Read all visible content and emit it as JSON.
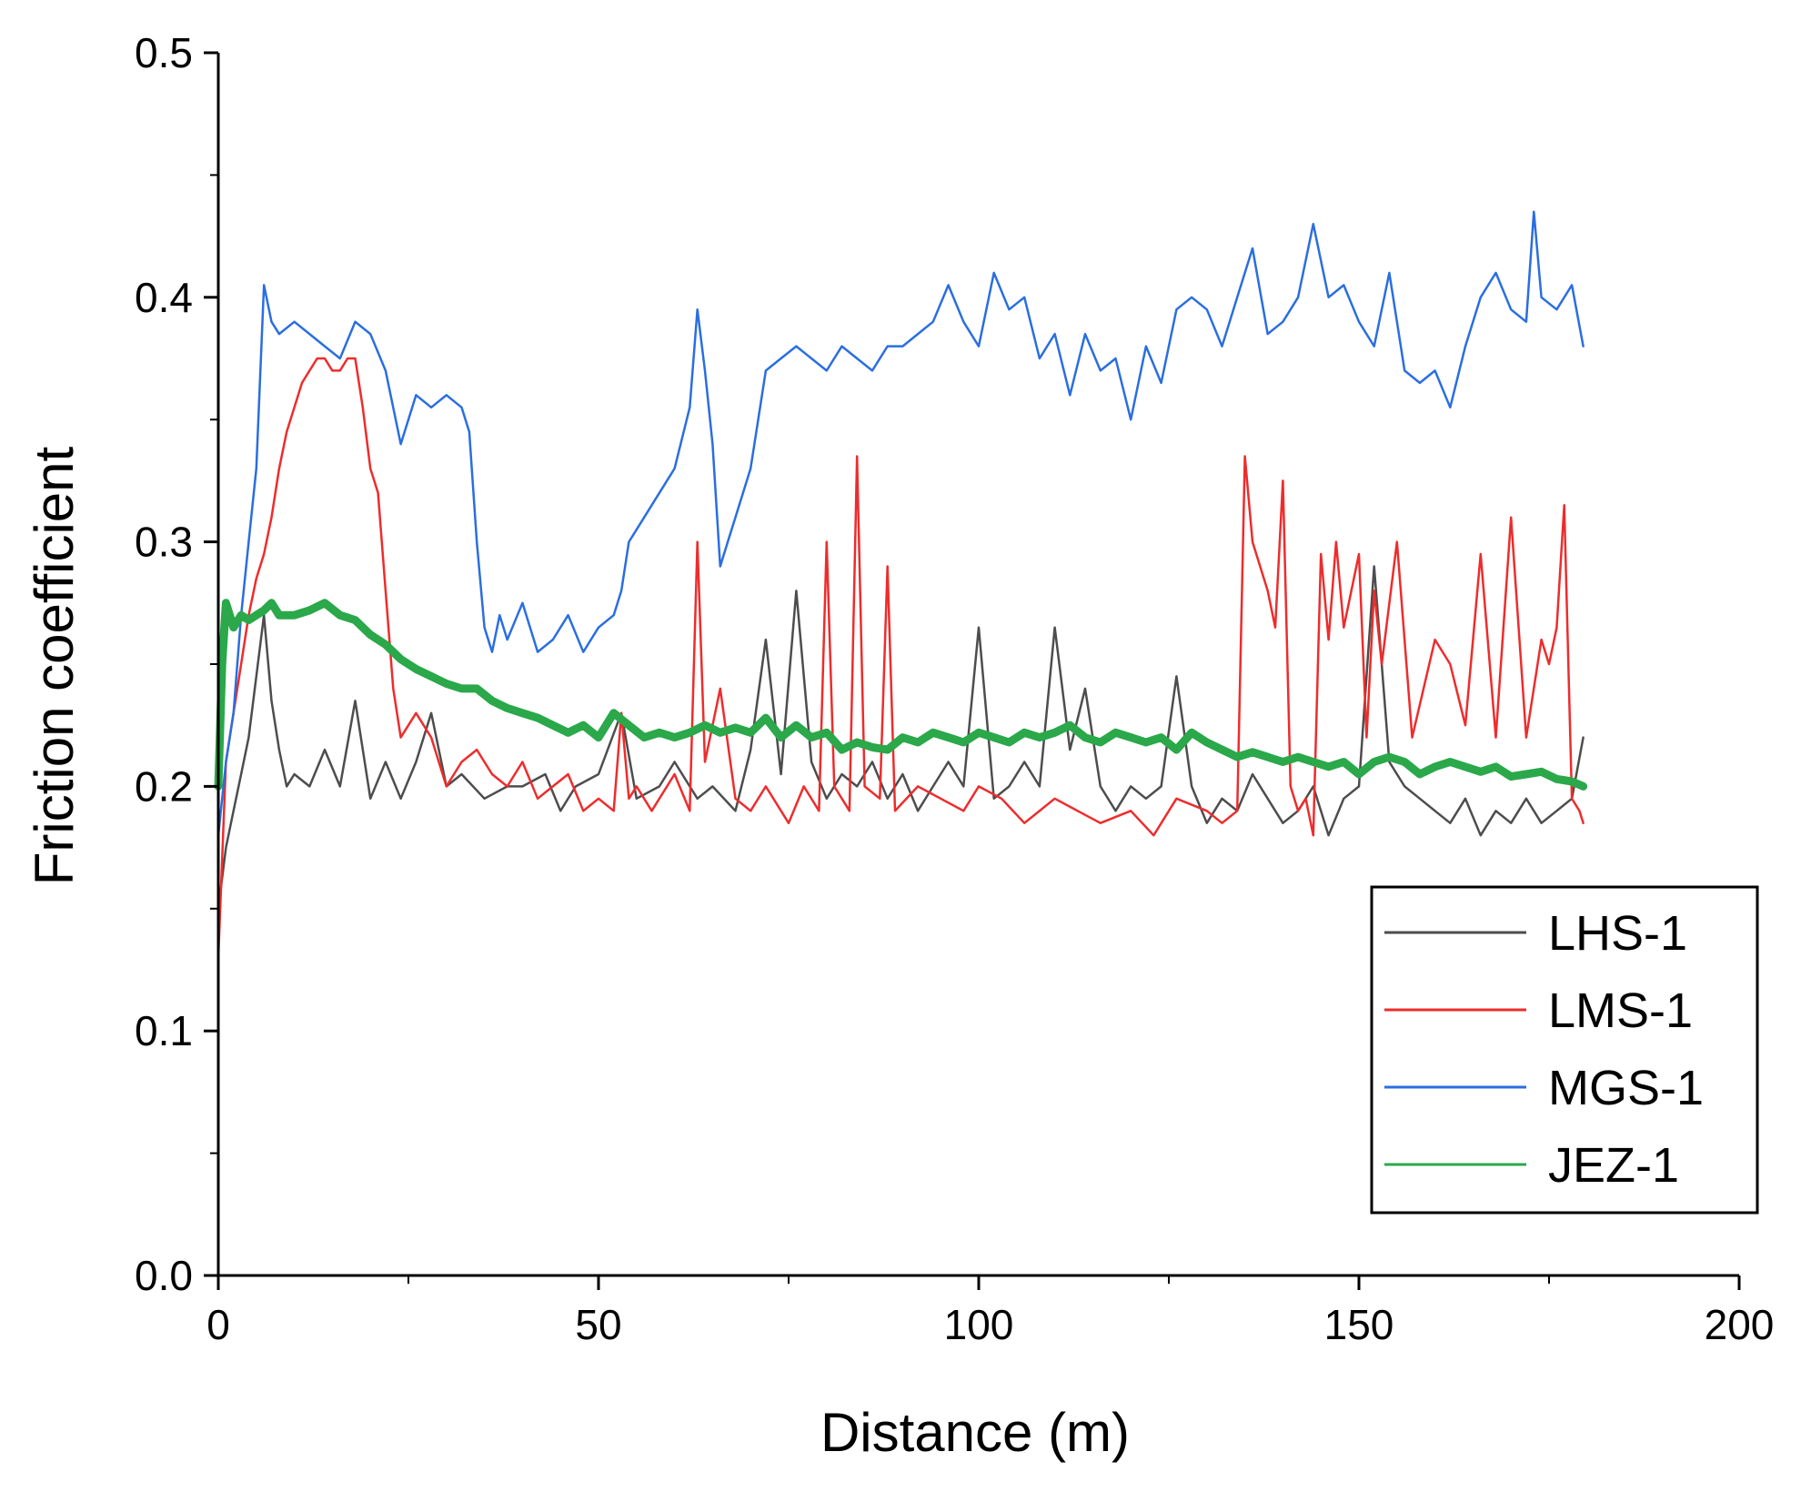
{
  "chart_data": {
    "type": "line",
    "title": "",
    "xlabel": "Distance (m)",
    "ylabel": "Friction coefficient",
    "xlim": [
      0,
      200
    ],
    "ylim": [
      0.0,
      0.5
    ],
    "x_ticks": [
      0,
      50,
      100,
      150,
      200
    ],
    "x_tick_labels": [
      "0",
      "50",
      "100",
      "150",
      "200"
    ],
    "y_ticks": [
      0.0,
      0.1,
      0.2,
      0.3,
      0.4,
      0.5
    ],
    "y_tick_labels": [
      "0.0",
      "0.1",
      "0.2",
      "0.3",
      "0.4",
      "0.5"
    ],
    "grid": false,
    "legend_position": "bottom-right",
    "series": [
      {
        "name": "LHS-1",
        "color": "#4d4d4d",
        "x": [
          0,
          1,
          2,
          3,
          4,
          5,
          6,
          7,
          8,
          9,
          10,
          12,
          14,
          16,
          18,
          20,
          22,
          24,
          26,
          28,
          30,
          32,
          35,
          38,
          40,
          43,
          45,
          47,
          50,
          53,
          55,
          58,
          60,
          63,
          65,
          68,
          70,
          72,
          74,
          76,
          78,
          80,
          82,
          84,
          86,
          88,
          90,
          92,
          94,
          96,
          98,
          100,
          102,
          104,
          106,
          108,
          110,
          112,
          114,
          116,
          118,
          120,
          122,
          124,
          126,
          128,
          130,
          132,
          134,
          136,
          138,
          140,
          142,
          144,
          146,
          148,
          150,
          152,
          154,
          156,
          158,
          160,
          162,
          164,
          166,
          168,
          170,
          172,
          174,
          176,
          178,
          179.5
        ],
        "values": [
          0.15,
          0.175,
          0.19,
          0.205,
          0.22,
          0.245,
          0.27,
          0.235,
          0.215,
          0.2,
          0.205,
          0.2,
          0.215,
          0.2,
          0.235,
          0.195,
          0.21,
          0.195,
          0.21,
          0.23,
          0.2,
          0.205,
          0.195,
          0.2,
          0.2,
          0.205,
          0.19,
          0.2,
          0.205,
          0.23,
          0.195,
          0.2,
          0.21,
          0.195,
          0.2,
          0.19,
          0.215,
          0.26,
          0.205,
          0.28,
          0.21,
          0.195,
          0.205,
          0.2,
          0.21,
          0.195,
          0.205,
          0.19,
          0.2,
          0.21,
          0.2,
          0.265,
          0.195,
          0.2,
          0.21,
          0.2,
          0.265,
          0.215,
          0.24,
          0.2,
          0.19,
          0.2,
          0.195,
          0.2,
          0.245,
          0.2,
          0.185,
          0.195,
          0.19,
          0.205,
          0.195,
          0.185,
          0.19,
          0.2,
          0.18,
          0.195,
          0.2,
          0.29,
          0.21,
          0.2,
          0.195,
          0.19,
          0.185,
          0.195,
          0.18,
          0.19,
          0.185,
          0.195,
          0.185,
          0.19,
          0.195,
          0.22
        ]
      },
      {
        "name": "LMS-1",
        "color": "#ee2c2c",
        "x": [
          0,
          1,
          2,
          3,
          4,
          5,
          6,
          7,
          8,
          9,
          10,
          11,
          12,
          13,
          14,
          15,
          16,
          17,
          18,
          19,
          20,
          21,
          22,
          23,
          24,
          26,
          28,
          30,
          32,
          34,
          36,
          38,
          40,
          42,
          44,
          46,
          48,
          50,
          52,
          53,
          54,
          55,
          57,
          60,
          62,
          63,
          64,
          66,
          68,
          70,
          72,
          75,
          77,
          79,
          80,
          81,
          83,
          84,
          85,
          87,
          88,
          89,
          92,
          95,
          98,
          100,
          103,
          106,
          110,
          113,
          116,
          120,
          123,
          126,
          130,
          132,
          134,
          135,
          136,
          138,
          139,
          140,
          141,
          142,
          143,
          144,
          145,
          146,
          147,
          148,
          150,
          151,
          152,
          153,
          155,
          157,
          160,
          162,
          164,
          166,
          168,
          170,
          172,
          174,
          175,
          176,
          177,
          178,
          179,
          179.5
        ],
        "values": [
          0.13,
          0.21,
          0.23,
          0.25,
          0.27,
          0.285,
          0.295,
          0.31,
          0.33,
          0.345,
          0.355,
          0.365,
          0.37,
          0.375,
          0.375,
          0.37,
          0.37,
          0.375,
          0.375,
          0.355,
          0.33,
          0.32,
          0.28,
          0.24,
          0.22,
          0.23,
          0.22,
          0.2,
          0.21,
          0.215,
          0.205,
          0.2,
          0.21,
          0.195,
          0.2,
          0.205,
          0.19,
          0.195,
          0.19,
          0.23,
          0.195,
          0.2,
          0.19,
          0.205,
          0.19,
          0.3,
          0.21,
          0.24,
          0.195,
          0.19,
          0.2,
          0.185,
          0.2,
          0.19,
          0.3,
          0.2,
          0.19,
          0.335,
          0.2,
          0.195,
          0.29,
          0.19,
          0.2,
          0.195,
          0.19,
          0.2,
          0.195,
          0.185,
          0.195,
          0.19,
          0.185,
          0.19,
          0.18,
          0.195,
          0.19,
          0.185,
          0.19,
          0.335,
          0.3,
          0.28,
          0.265,
          0.325,
          0.2,
          0.19,
          0.195,
          0.18,
          0.295,
          0.26,
          0.3,
          0.265,
          0.295,
          0.22,
          0.28,
          0.25,
          0.3,
          0.22,
          0.26,
          0.25,
          0.225,
          0.295,
          0.22,
          0.31,
          0.22,
          0.26,
          0.25,
          0.265,
          0.315,
          0.195,
          0.19,
          0.185
        ]
      },
      {
        "name": "MGS-1",
        "color": "#2a6ee0",
        "x": [
          0,
          1,
          2,
          3,
          4,
          5,
          6,
          7,
          8,
          10,
          12,
          14,
          16,
          18,
          20,
          22,
          24,
          25,
          26,
          28,
          30,
          32,
          33,
          34,
          35,
          36,
          37,
          38,
          40,
          42,
          44,
          46,
          48,
          50,
          52,
          53,
          54,
          56,
          58,
          60,
          62,
          63,
          64,
          65,
          66,
          67,
          68,
          70,
          72,
          74,
          76,
          78,
          80,
          82,
          84,
          86,
          88,
          90,
          92,
          94,
          96,
          98,
          100,
          102,
          104,
          106,
          108,
          110,
          112,
          114,
          116,
          118,
          120,
          122,
          124,
          126,
          128,
          130,
          132,
          134,
          136,
          138,
          140,
          142,
          144,
          146,
          148,
          150,
          152,
          154,
          156,
          158,
          160,
          162,
          164,
          166,
          168,
          170,
          172,
          173,
          174,
          176,
          178,
          179.5
        ],
        "values": [
          0.18,
          0.21,
          0.23,
          0.27,
          0.3,
          0.33,
          0.405,
          0.39,
          0.385,
          0.39,
          0.385,
          0.38,
          0.375,
          0.39,
          0.385,
          0.37,
          0.34,
          0.35,
          0.36,
          0.355,
          0.36,
          0.355,
          0.345,
          0.3,
          0.265,
          0.255,
          0.27,
          0.26,
          0.275,
          0.255,
          0.26,
          0.27,
          0.255,
          0.265,
          0.27,
          0.28,
          0.3,
          0.31,
          0.32,
          0.33,
          0.355,
          0.395,
          0.37,
          0.34,
          0.29,
          0.3,
          0.31,
          0.33,
          0.37,
          0.375,
          0.38,
          0.375,
          0.37,
          0.38,
          0.375,
          0.37,
          0.38,
          0.38,
          0.385,
          0.39,
          0.405,
          0.39,
          0.38,
          0.41,
          0.395,
          0.4,
          0.375,
          0.385,
          0.36,
          0.385,
          0.37,
          0.375,
          0.35,
          0.38,
          0.365,
          0.395,
          0.4,
          0.395,
          0.38,
          0.4,
          0.42,
          0.385,
          0.39,
          0.4,
          0.43,
          0.4,
          0.405,
          0.39,
          0.38,
          0.41,
          0.37,
          0.365,
          0.37,
          0.355,
          0.38,
          0.4,
          0.41,
          0.395,
          0.39,
          0.435,
          0.4,
          0.395,
          0.405,
          0.38
        ]
      },
      {
        "name": "JEZ-1",
        "color": "#2aa84a",
        "x": [
          0,
          0.5,
          1,
          2,
          3,
          4,
          5,
          6,
          7,
          8,
          10,
          12,
          14,
          16,
          18,
          20,
          22,
          24,
          26,
          28,
          30,
          32,
          34,
          36,
          38,
          40,
          42,
          44,
          46,
          48,
          50,
          52,
          54,
          56,
          58,
          60,
          62,
          64,
          66,
          68,
          70,
          72,
          74,
          76,
          78,
          80,
          82,
          84,
          86,
          88,
          90,
          92,
          94,
          96,
          98,
          100,
          102,
          104,
          106,
          108,
          110,
          112,
          114,
          116,
          118,
          120,
          122,
          124,
          126,
          128,
          130,
          132,
          134,
          136,
          138,
          140,
          142,
          144,
          146,
          148,
          150,
          152,
          154,
          156,
          158,
          160,
          162,
          164,
          166,
          168,
          170,
          172,
          174,
          176,
          178,
          179.5
        ],
        "values": [
          0.2,
          0.25,
          0.275,
          0.265,
          0.27,
          0.268,
          0.27,
          0.272,
          0.275,
          0.27,
          0.27,
          0.272,
          0.275,
          0.27,
          0.268,
          0.262,
          0.258,
          0.252,
          0.248,
          0.245,
          0.242,
          0.24,
          0.24,
          0.235,
          0.232,
          0.23,
          0.228,
          0.225,
          0.222,
          0.225,
          0.22,
          0.23,
          0.225,
          0.22,
          0.222,
          0.22,
          0.222,
          0.225,
          0.222,
          0.224,
          0.222,
          0.228,
          0.22,
          0.225,
          0.22,
          0.222,
          0.215,
          0.218,
          0.216,
          0.215,
          0.22,
          0.218,
          0.222,
          0.22,
          0.218,
          0.222,
          0.22,
          0.218,
          0.222,
          0.22,
          0.222,
          0.225,
          0.22,
          0.218,
          0.222,
          0.22,
          0.218,
          0.22,
          0.215,
          0.222,
          0.218,
          0.215,
          0.212,
          0.214,
          0.212,
          0.21,
          0.212,
          0.21,
          0.208,
          0.21,
          0.205,
          0.21,
          0.212,
          0.21,
          0.205,
          0.208,
          0.21,
          0.208,
          0.206,
          0.208,
          0.204,
          0.205,
          0.206,
          0.203,
          0.202,
          0.2
        ]
      }
    ]
  }
}
